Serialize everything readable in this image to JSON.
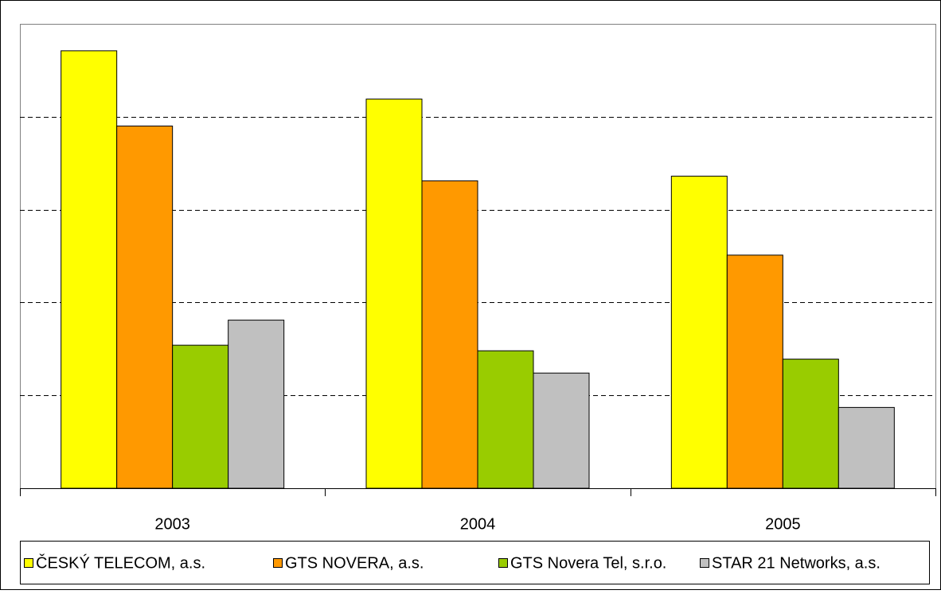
{
  "chart_data": {
    "type": "bar",
    "categories": [
      "2003",
      "2004",
      "2005"
    ],
    "series": [
      {
        "name": "ČESKÝ TELECOM, a.s.",
        "color": "#ffff00",
        "values": [
          4.71,
          4.19,
          3.36
        ]
      },
      {
        "name": "GTS NOVERA, a.s.",
        "color": "#ff9900",
        "values": [
          3.9,
          3.31,
          2.51
        ]
      },
      {
        "name": "GTS Novera Tel, s.r.o.",
        "color": "#99cc00",
        "values": [
          1.54,
          1.48,
          1.39
        ]
      },
      {
        "name": "STAR 21 Networks, a.s.",
        "color": "#c0c0c0",
        "values": [
          1.81,
          1.24,
          0.87
        ]
      }
    ],
    "ylim": [
      0,
      5
    ],
    "yticks": [
      1,
      2,
      3,
      4
    ],
    "grid": true,
    "legend": "bottom"
  }
}
